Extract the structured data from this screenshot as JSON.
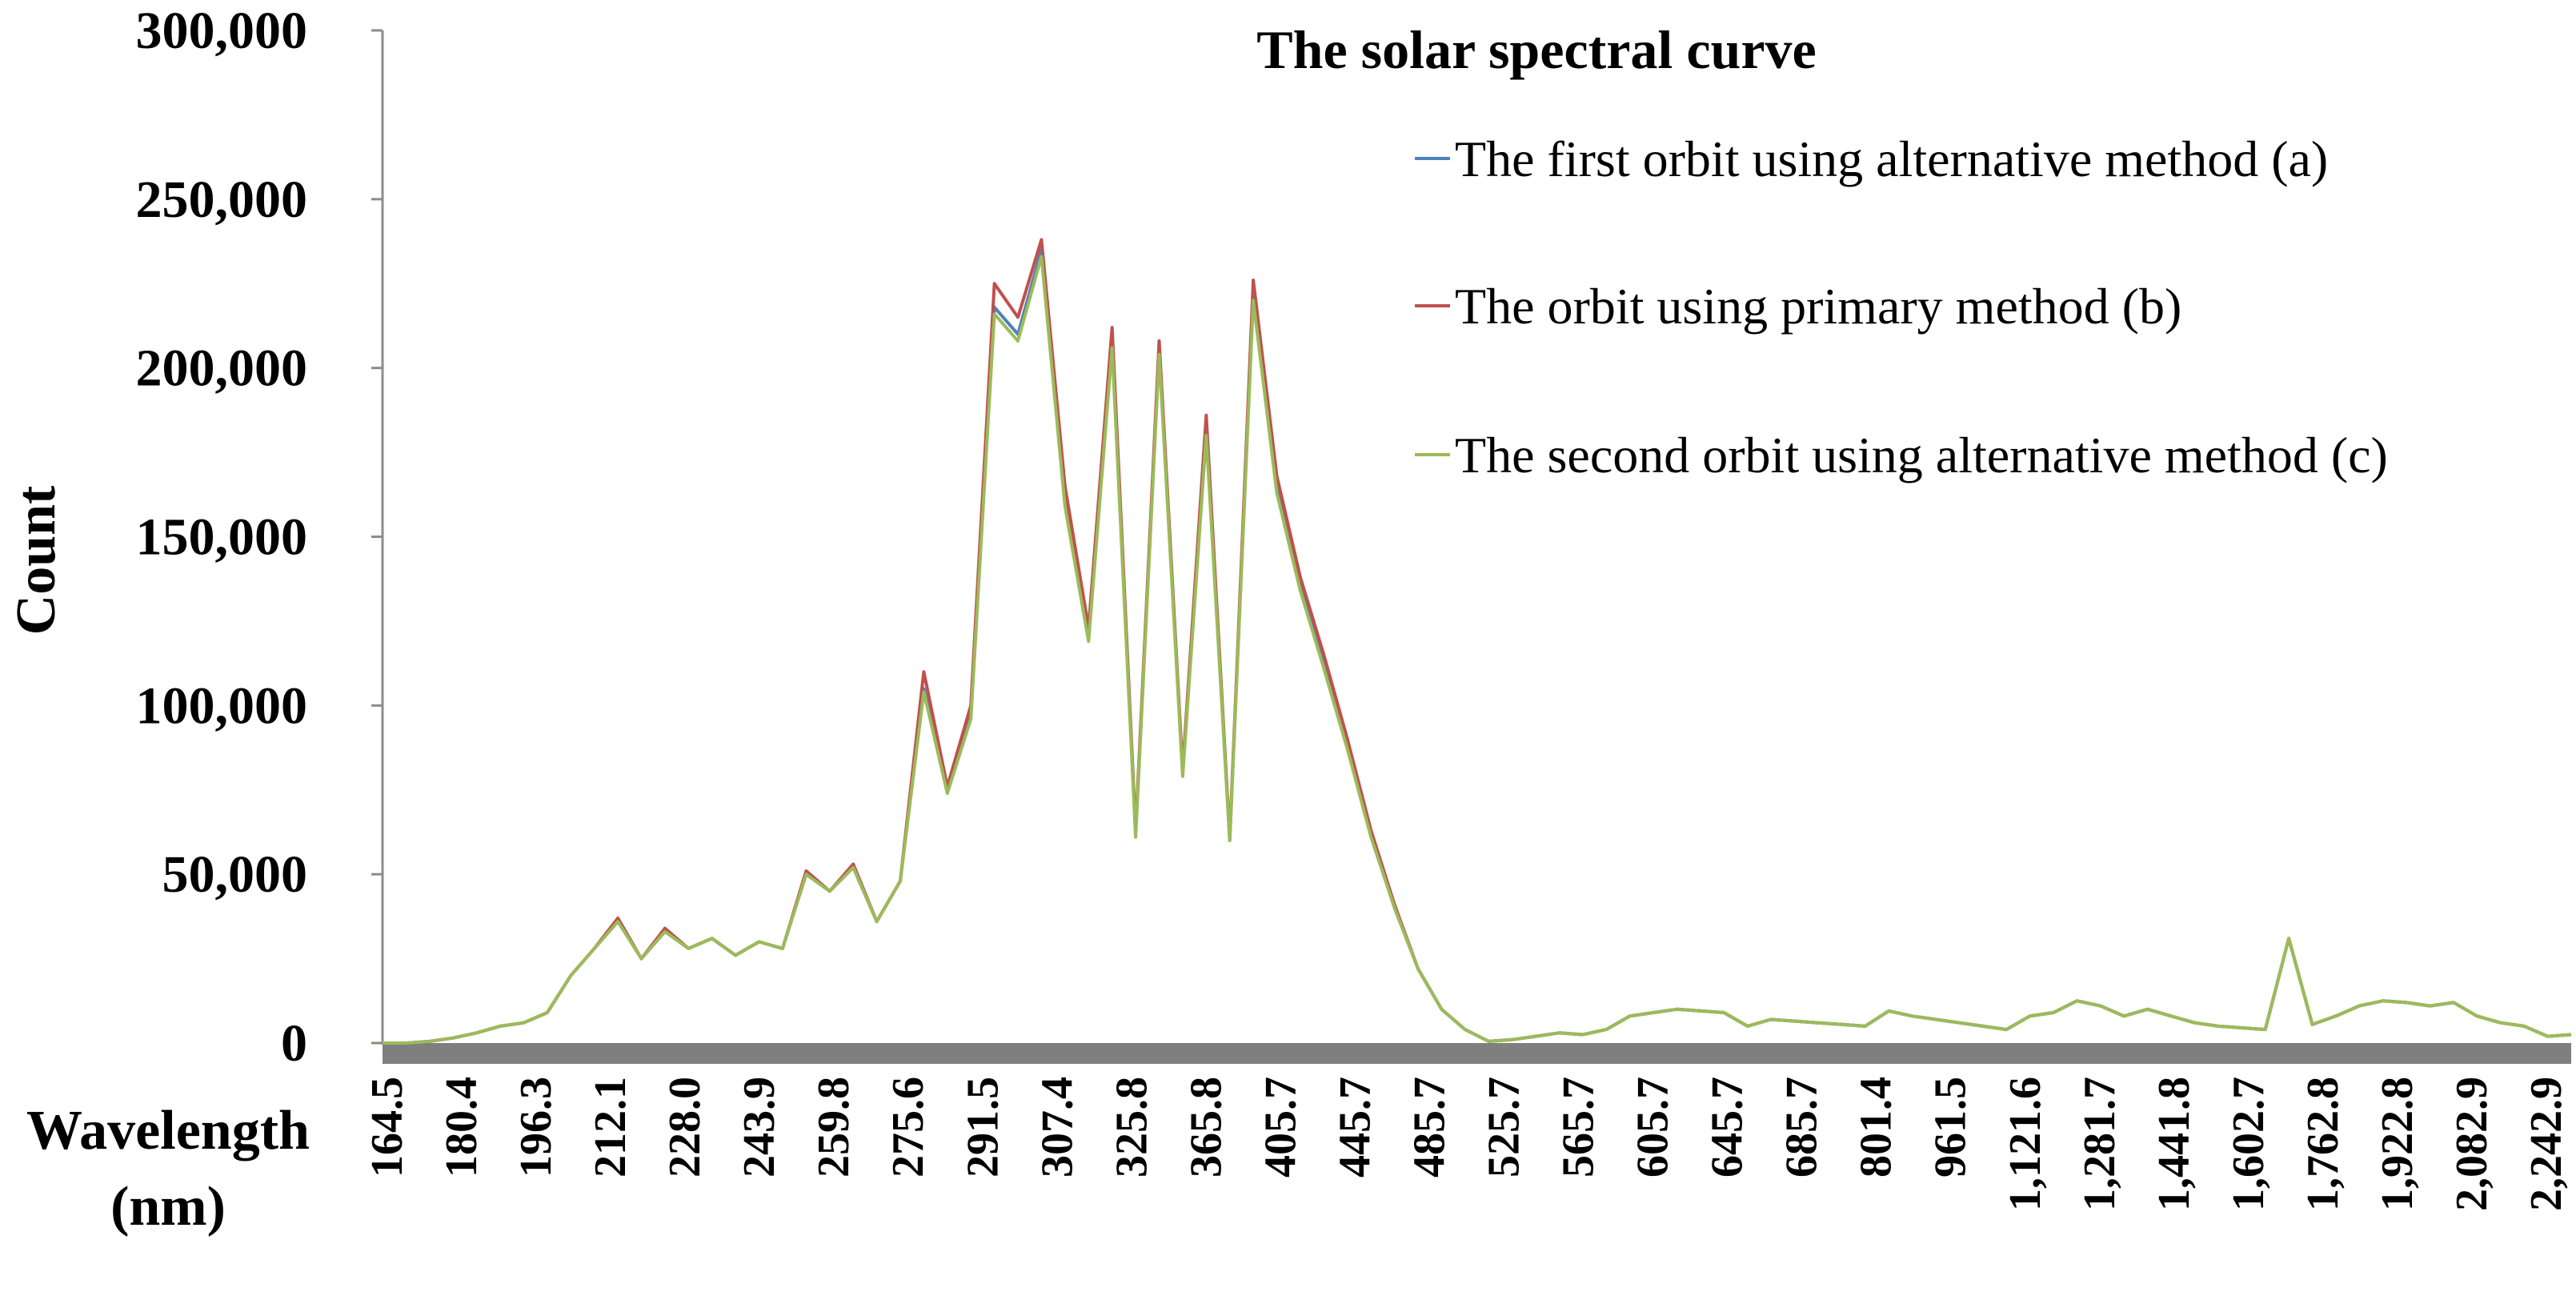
{
  "chart_data": {
    "type": "line",
    "title": "The solar spectral curve",
    "xlabel": "Wavelength",
    "xunit": "(nm)",
    "ylabel": "Count",
    "ylim": [
      0,
      300000
    ],
    "yticks": [
      "0",
      "50,000",
      "100,000",
      "150,000",
      "200,000",
      "250,000",
      "300,000"
    ],
    "ytick_values": [
      0,
      50000,
      100000,
      150000,
      200000,
      250000,
      300000
    ],
    "category_count": 94,
    "xtick_labels": [
      "164.5",
      "180.4",
      "196.3",
      "212.1",
      "228.0",
      "243.9",
      "259.8",
      "275.6",
      "291.5",
      "307.4",
      "325.8",
      "365.8",
      "405.7",
      "445.7",
      "485.7",
      "525.7",
      "565.7",
      "605.7",
      "645.7",
      "685.7",
      "801.4",
      "961.5",
      "1,121.6",
      "1,281.7",
      "1,441.8",
      "1,602.7",
      "1,762.8",
      "1,922.8",
      "2,082.9",
      "2,242.9"
    ],
    "legend_position": "top-right",
    "series": [
      {
        "name": "The first orbit using alternative method (a)",
        "color": "#4f81bd",
        "values": [
          0,
          0,
          500,
          1500,
          3000,
          5000,
          6000,
          9000,
          20000,
          28000,
          36000,
          25000,
          33000,
          28000,
          31000,
          26000,
          30000,
          28000,
          50000,
          45000,
          52000,
          36000,
          48000,
          105000,
          75000,
          97000,
          218000,
          210000,
          235000,
          160000,
          120000,
          208000,
          62000,
          205000,
          80000,
          182000,
          60000,
          222000,
          165000,
          135000,
          112000,
          88000,
          62000,
          40000,
          22000,
          10000,
          4000,
          500,
          1000,
          2000,
          3000,
          2500,
          4000,
          8000,
          9000,
          10000,
          9500,
          9000,
          5000,
          7000,
          6500,
          6000,
          5500,
          5000,
          9500,
          8000,
          7000,
          6000,
          5000,
          4000,
          8000,
          9000,
          12500,
          11000,
          8000,
          10000,
          8000,
          6000,
          5000,
          4500,
          4000,
          31000,
          5500,
          8000,
          11000,
          12500,
          12000,
          11000,
          12000,
          8000,
          6000,
          5000,
          2000,
          2500
        ]
      },
      {
        "name": "The orbit using primary method (b)",
        "color": "#c0504d",
        "values": [
          0,
          0,
          500,
          1500,
          3000,
          5000,
          6000,
          9000,
          20000,
          28000,
          37000,
          25000,
          34000,
          28000,
          31000,
          26000,
          30000,
          28000,
          51000,
          45000,
          53000,
          36000,
          48000,
          110000,
          76000,
          100000,
          225000,
          215000,
          238000,
          165000,
          123000,
          212000,
          63000,
          208000,
          81000,
          186000,
          61000,
          226000,
          168000,
          138000,
          115000,
          90000,
          63000,
          41000,
          22000,
          10000,
          4000,
          500,
          1000,
          2000,
          3000,
          2500,
          4000,
          8000,
          9000,
          10000,
          9500,
          9000,
          5000,
          7000,
          6500,
          6000,
          5500,
          5000,
          9500,
          8000,
          7000,
          6000,
          5000,
          4000,
          8000,
          9000,
          12500,
          11000,
          8000,
          10000,
          8000,
          6000,
          5000,
          4500,
          4000,
          31000,
          5500,
          8000,
          11000,
          12500,
          12000,
          11000,
          12000,
          8000,
          6000,
          5000,
          2000,
          2500
        ]
      },
      {
        "name": "The second orbit using alternative method (c)",
        "color": "#9bbb59",
        "values": [
          0,
          0,
          500,
          1500,
          3000,
          5000,
          6000,
          9000,
          20000,
          28000,
          36000,
          25000,
          33000,
          28000,
          31000,
          26000,
          30000,
          28000,
          50000,
          45000,
          52000,
          36000,
          48000,
          104000,
          74000,
          96000,
          216000,
          208000,
          233000,
          159000,
          119000,
          206000,
          61000,
          204000,
          79000,
          180000,
          60000,
          220000,
          163000,
          134000,
          111000,
          87000,
          61000,
          40000,
          22000,
          10000,
          4000,
          500,
          1000,
          2000,
          3000,
          2500,
          4000,
          8000,
          9000,
          10000,
          9500,
          9000,
          5000,
          7000,
          6500,
          6000,
          5500,
          5000,
          9500,
          8000,
          7000,
          6000,
          5000,
          4000,
          8000,
          9000,
          12500,
          11000,
          8000,
          10000,
          8000,
          6000,
          5000,
          4500,
          4000,
          31000,
          5500,
          8000,
          11000,
          12500,
          12000,
          11000,
          12000,
          8000,
          6000,
          5000,
          2000,
          2500
        ]
      }
    ]
  }
}
